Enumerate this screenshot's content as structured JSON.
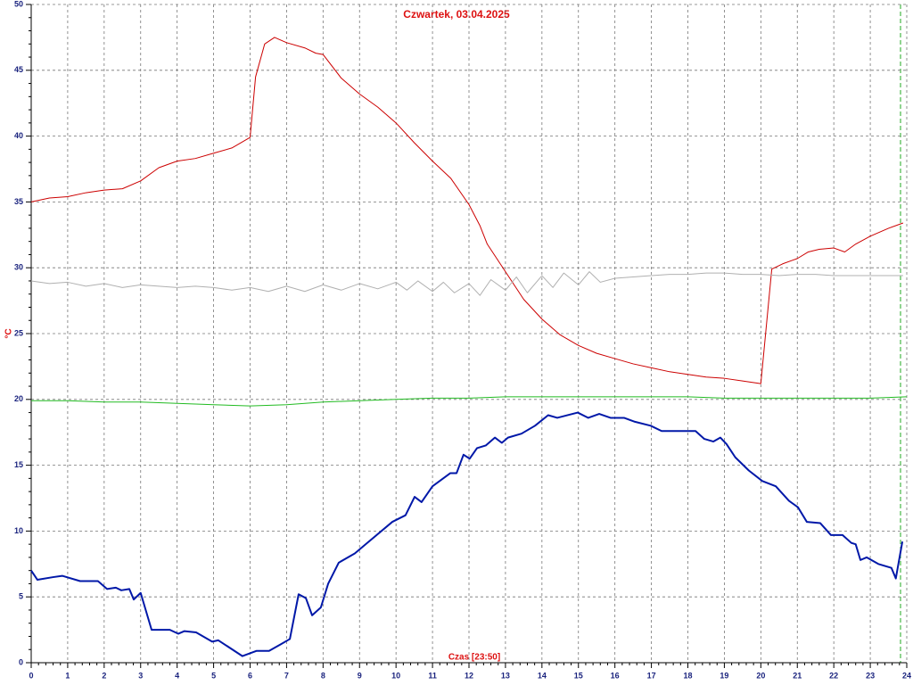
{
  "chart_data": {
    "type": "line",
    "title": "Czwartek, 03.04.2025",
    "x_label": "Czas [23:50]",
    "y_label": "°C",
    "xlim": [
      0,
      24
    ],
    "ylim": [
      0,
      50
    ],
    "xticks": [
      0,
      1,
      2,
      3,
      4,
      5,
      6,
      7,
      8,
      9,
      10,
      11,
      12,
      13,
      14,
      15,
      16,
      17,
      18,
      19,
      20,
      21,
      22,
      23,
      24
    ],
    "yticks": [
      0,
      5,
      10,
      15,
      20,
      25,
      30,
      35,
      40,
      45,
      50
    ],
    "grid": true,
    "series": [
      {
        "color": "#cc0000",
        "width": 1,
        "x": [
          0,
          0.5,
          1,
          1.5,
          2,
          2.5,
          3,
          3.5,
          4,
          4.5,
          5,
          5.5,
          6,
          6.15,
          6.4,
          6.67,
          7,
          7.5,
          7.8,
          8,
          8.5,
          9,
          9.5,
          10,
          10.5,
          11,
          11.5,
          12,
          12.3,
          12.5,
          13,
          13.5,
          14,
          14.5,
          15,
          15.5,
          16,
          16.5,
          17,
          17.5,
          18,
          18.5,
          19,
          19.5,
          20,
          20.3,
          20.6,
          21,
          21.3,
          21.6,
          22,
          22.3,
          22.6,
          23,
          23.5,
          23.9
        ],
        "values": [
          35,
          35.3,
          35.4,
          35.7,
          35.9,
          36.0,
          36.6,
          37.6,
          38.1,
          38.3,
          38.7,
          39.1,
          39.9,
          44.5,
          47.0,
          47.5,
          47.1,
          46.7,
          46.3,
          46.2,
          44.4,
          43.2,
          42.2,
          41.0,
          39.5,
          38.1,
          36.8,
          34.8,
          33.2,
          31.8,
          29.7,
          27.6,
          26.1,
          24.9,
          24.1,
          23.5,
          23.1,
          22.7,
          22.4,
          22.1,
          21.9,
          21.7,
          21.6,
          21.4,
          21.2,
          29.9,
          30.3,
          30.7,
          31.2,
          31.4,
          31.5,
          31.2,
          31.8,
          32.4,
          33.0,
          33.4
        ]
      },
      {
        "color": "#b0b0b0",
        "width": 1,
        "x": [
          0,
          0.5,
          1,
          1.5,
          2,
          2.5,
          3,
          3.5,
          4,
          4.5,
          5,
          5.5,
          6,
          6.5,
          7,
          7.5,
          8,
          8.5,
          9,
          9.5,
          10,
          10.3,
          10.6,
          11,
          11.3,
          11.6,
          12,
          12.3,
          12.6,
          13,
          13.3,
          13.6,
          14,
          14.3,
          14.6,
          15,
          15.3,
          15.6,
          16,
          16.5,
          17,
          17.5,
          18,
          18.5,
          19,
          19.5,
          20,
          20.5,
          21,
          21.5,
          22,
          22.5,
          23,
          23.5,
          23.9
        ],
        "values": [
          29,
          28.8,
          28.9,
          28.6,
          28.8,
          28.5,
          28.7,
          28.6,
          28.5,
          28.6,
          28.5,
          28.3,
          28.5,
          28.2,
          28.6,
          28.2,
          28.7,
          28.3,
          28.8,
          28.4,
          28.9,
          28.3,
          29.0,
          28.2,
          28.9,
          28.1,
          28.8,
          27.9,
          29.1,
          28.3,
          29.3,
          28.1,
          29.4,
          28.5,
          29.6,
          28.7,
          29.7,
          28.9,
          29.2,
          29.3,
          29.4,
          29.5,
          29.5,
          29.6,
          29.6,
          29.5,
          29.5,
          29.4,
          29.5,
          29.5,
          29.4,
          29.4,
          29.4,
          29.4,
          29.4
        ]
      },
      {
        "color": "#22bb22",
        "width": 1,
        "x": [
          0,
          1,
          2,
          3,
          4,
          5,
          6,
          7,
          8,
          9,
          10,
          11,
          12,
          13,
          14,
          15,
          16,
          17,
          18,
          19,
          20,
          21,
          22,
          23,
          24
        ],
        "values": [
          19.9,
          19.9,
          19.8,
          19.8,
          19.7,
          19.6,
          19.5,
          19.6,
          19.8,
          19.9,
          20.0,
          20.1,
          20.1,
          20.2,
          20.2,
          20.2,
          20.2,
          20.2,
          20.2,
          20.1,
          20.1,
          20.1,
          20.1,
          20.1,
          20.2
        ]
      },
      {
        "color": "#0018a8",
        "width": 2,
        "x": [
          0,
          0.17,
          0.6,
          0.85,
          1.34,
          1.83,
          2.08,
          2.32,
          2.47,
          2.69,
          2.81,
          3,
          3.3,
          3.8,
          4.03,
          4.2,
          4.52,
          4.96,
          5.13,
          5.79,
          6.18,
          6.52,
          6.84,
          7.09,
          7.33,
          7.53,
          7.7,
          7.94,
          8.14,
          8.43,
          8.87,
          9.17,
          9.9,
          10.26,
          10.51,
          10.7,
          11,
          11.49,
          11.66,
          11.85,
          12.02,
          12.22,
          12.46,
          12.71,
          12.9,
          13.07,
          13.44,
          13.81,
          14.17,
          14.42,
          14.98,
          15.27,
          15.57,
          15.88,
          16.25,
          16.55,
          16.98,
          17.28,
          17.72,
          18.21,
          18.45,
          18.7,
          18.89,
          19.06,
          19.3,
          19.67,
          20.04,
          20.41,
          20.77,
          21.02,
          21.26,
          21.63,
          21.92,
          22.24,
          22.48,
          22.6,
          22.73,
          22.9,
          23.22,
          23.58,
          23.7,
          23.88
        ],
        "values": [
          7.0,
          6.3,
          6.5,
          6.6,
          6.2,
          6.2,
          5.6,
          5.7,
          5.5,
          5.6,
          4.8,
          5.3,
          2.5,
          2.5,
          2.2,
          2.4,
          2.3,
          1.6,
          1.7,
          0.5,
          0.9,
          0.9,
          1.4,
          1.8,
          5.2,
          4.9,
          3.6,
          4.2,
          6.0,
          7.6,
          8.3,
          9.0,
          10.7,
          11.2,
          12.6,
          12.2,
          13.4,
          14.4,
          14.4,
          15.8,
          15.5,
          16.3,
          16.5,
          17.1,
          16.7,
          17.1,
          17.4,
          18.0,
          18.8,
          18.6,
          19.0,
          18.6,
          18.9,
          18.6,
          18.6,
          18.3,
          18.0,
          17.6,
          17.6,
          17.6,
          17.0,
          16.8,
          17.1,
          16.6,
          15.6,
          14.6,
          13.8,
          13.4,
          12.3,
          11.8,
          10.7,
          10.6,
          9.7,
          9.7,
          9.1,
          9.0,
          7.8,
          8.0,
          7.5,
          7.2,
          6.4,
          9.2
        ]
      }
    ]
  }
}
